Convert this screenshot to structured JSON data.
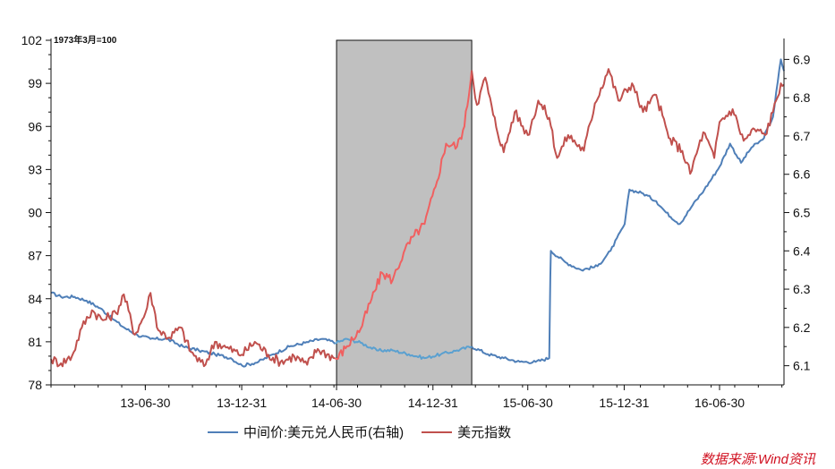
{
  "chart_data": {
    "type": "line",
    "unit_note": "1973年3月=100",
    "x_ticks": [
      "13-06-30",
      "13-12-31",
      "14-06-30",
      "14-12-31",
      "15-06-30",
      "15-12-31",
      "16-06-30"
    ],
    "x_range": [
      "2013-01-01",
      "2016-10-31"
    ],
    "left_axis": {
      "ylim": [
        78,
        102
      ],
      "ticks": [
        78,
        81,
        84,
        87,
        90,
        93,
        96,
        99,
        102
      ]
    },
    "right_axis": {
      "ylim": [
        6.05,
        6.95
      ],
      "ticks": [
        6.1,
        6.2,
        6.3,
        6.4,
        6.5,
        6.6,
        6.7,
        6.8,
        6.9
      ]
    },
    "highlight_range": [
      "2014-06-30",
      "2015-03-15"
    ],
    "highlight_color": "#c0c0c0",
    "series": [
      {
        "name": "中间价:美元兑人民币(右轴)",
        "axis": "right",
        "color": "#4f7fb8",
        "highlight_color": "#5aa0d0",
        "points": [
          [
            "2013-01-01",
            6.29
          ],
          [
            "2013-01-20",
            6.28
          ],
          [
            "2013-02-15",
            6.28
          ],
          [
            "2013-03-10",
            6.27
          ],
          [
            "2013-04-05",
            6.25
          ],
          [
            "2013-05-01",
            6.22
          ],
          [
            "2013-05-20",
            6.2
          ],
          [
            "2013-06-15",
            6.18
          ],
          [
            "2013-07-10",
            6.17
          ],
          [
            "2013-08-10",
            6.17
          ],
          [
            "2013-09-10",
            6.15
          ],
          [
            "2013-10-10",
            6.14
          ],
          [
            "2013-11-10",
            6.13
          ],
          [
            "2013-12-10",
            6.12
          ],
          [
            "2014-01-01",
            6.1
          ],
          [
            "2014-02-01",
            6.11
          ],
          [
            "2014-03-01",
            6.13
          ],
          [
            "2014-04-01",
            6.15
          ],
          [
            "2014-05-01",
            6.16
          ],
          [
            "2014-06-01",
            6.17
          ],
          [
            "2014-06-30",
            6.16
          ],
          [
            "2014-07-20",
            6.17
          ],
          [
            "2014-08-15",
            6.16
          ],
          [
            "2014-09-15",
            6.14
          ],
          [
            "2014-10-15",
            6.14
          ],
          [
            "2014-11-15",
            6.13
          ],
          [
            "2014-12-15",
            6.12
          ],
          [
            "2015-01-15",
            6.13
          ],
          [
            "2015-02-15",
            6.14
          ],
          [
            "2015-03-15",
            6.15
          ],
          [
            "2015-04-15",
            6.13
          ],
          [
            "2015-05-15",
            6.12
          ],
          [
            "2015-06-15",
            6.11
          ],
          [
            "2015-07-15",
            6.11
          ],
          [
            "2015-08-10",
            6.12
          ],
          [
            "2015-08-12",
            6.33
          ],
          [
            "2015-08-13",
            6.4
          ],
          [
            "2015-09-10",
            6.37
          ],
          [
            "2015-10-10",
            6.35
          ],
          [
            "2015-11-10",
            6.36
          ],
          [
            "2015-12-05",
            6.4
          ],
          [
            "2016-01-01",
            6.47
          ],
          [
            "2016-01-10",
            6.56
          ],
          [
            "2016-02-05",
            6.55
          ],
          [
            "2016-03-01",
            6.53
          ],
          [
            "2016-03-20",
            6.5
          ],
          [
            "2016-04-15",
            6.47
          ],
          [
            "2016-05-10",
            6.52
          ],
          [
            "2016-06-01",
            6.56
          ],
          [
            "2016-06-30",
            6.62
          ],
          [
            "2016-07-20",
            6.68
          ],
          [
            "2016-08-10",
            6.63
          ],
          [
            "2016-08-30",
            6.67
          ],
          [
            "2016-09-20",
            6.69
          ],
          [
            "2016-10-10",
            6.75
          ],
          [
            "2016-10-25",
            6.9
          ],
          [
            "2016-10-31",
            6.87
          ]
        ]
      },
      {
        "name": "美元指数",
        "axis": "left",
        "color": "#c0504d",
        "highlight_color": "#f06060",
        "points": [
          [
            "2013-01-01",
            79.8
          ],
          [
            "2013-01-20",
            79.5
          ],
          [
            "2013-02-10",
            80.0
          ],
          [
            "2013-03-01",
            82.0
          ],
          [
            "2013-03-20",
            83.2
          ],
          [
            "2013-04-10",
            82.5
          ],
          [
            "2013-05-05",
            83.0
          ],
          [
            "2013-05-20",
            84.3
          ],
          [
            "2013-06-10",
            81.5
          ],
          [
            "2013-06-30",
            83.0
          ],
          [
            "2013-07-10",
            84.4
          ],
          [
            "2013-07-25",
            81.8
          ],
          [
            "2013-08-15",
            81.3
          ],
          [
            "2013-09-05",
            82.0
          ],
          [
            "2013-09-25",
            80.3
          ],
          [
            "2013-10-20",
            79.3
          ],
          [
            "2013-11-10",
            81.0
          ],
          [
            "2013-12-01",
            80.6
          ],
          [
            "2013-12-31",
            80.1
          ],
          [
            "2014-01-25",
            81.0
          ],
          [
            "2014-02-20",
            80.1
          ],
          [
            "2014-03-15",
            79.6
          ],
          [
            "2014-04-10",
            80.0
          ],
          [
            "2014-05-05",
            79.4
          ],
          [
            "2014-05-25",
            80.5
          ],
          [
            "2014-06-30",
            79.8
          ],
          [
            "2014-07-20",
            80.7
          ],
          [
            "2014-08-15",
            81.9
          ],
          [
            "2014-09-05",
            84.0
          ],
          [
            "2014-09-25",
            85.8
          ],
          [
            "2014-10-15",
            85.3
          ],
          [
            "2014-11-05",
            87.2
          ],
          [
            "2014-11-25",
            88.4
          ],
          [
            "2014-12-15",
            89.2
          ],
          [
            "2015-01-05",
            91.8
          ],
          [
            "2015-01-25",
            94.8
          ],
          [
            "2015-02-15",
            94.6
          ],
          [
            "2015-03-01",
            96.0
          ],
          [
            "2015-03-15",
            99.9
          ],
          [
            "2015-03-25",
            97.5
          ],
          [
            "2015-04-10",
            99.4
          ],
          [
            "2015-04-25",
            96.8
          ],
          [
            "2015-05-15",
            94.2
          ],
          [
            "2015-06-05",
            97.0
          ],
          [
            "2015-06-30",
            95.4
          ],
          [
            "2015-07-20",
            97.8
          ],
          [
            "2015-08-10",
            96.6
          ],
          [
            "2015-08-25",
            93.8
          ],
          [
            "2015-09-15",
            95.4
          ],
          [
            "2015-10-15",
            94.3
          ],
          [
            "2015-11-05",
            97.6
          ],
          [
            "2015-12-01",
            100.0
          ],
          [
            "2015-12-20",
            97.8
          ],
          [
            "2016-01-15",
            99.0
          ],
          [
            "2016-02-05",
            97.0
          ],
          [
            "2016-03-01",
            98.2
          ],
          [
            "2016-03-25",
            95.2
          ],
          [
            "2016-04-20",
            94.3
          ],
          [
            "2016-05-05",
            92.7
          ],
          [
            "2016-05-30",
            95.6
          ],
          [
            "2016-06-20",
            93.8
          ],
          [
            "2016-06-30",
            96.3
          ],
          [
            "2016-07-25",
            97.2
          ],
          [
            "2016-08-15",
            95.0
          ],
          [
            "2016-09-05",
            95.8
          ],
          [
            "2016-09-25",
            95.4
          ],
          [
            "2016-10-10",
            97.0
          ],
          [
            "2016-10-25",
            99.0
          ],
          [
            "2016-10-31",
            98.9
          ]
        ]
      }
    ],
    "legend": {
      "placement": "bottom"
    },
    "source_note": "数据来源:Wind资讯"
  }
}
